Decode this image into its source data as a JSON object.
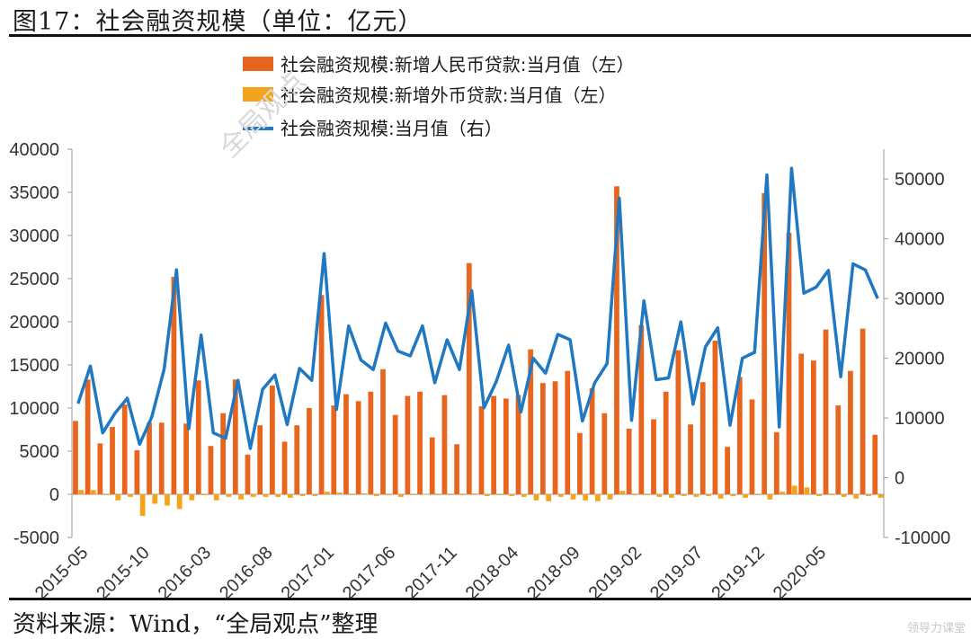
{
  "title": "图17：社会融资规模（单位：亿元）",
  "source": "资料来源：Wind，“全局观点”整理",
  "watermark": "全局观点",
  "corner_watermark": "领导力课堂",
  "colors": {
    "rmb": "#e8651e",
    "fx": "#f5a31a",
    "line": "#1f78c1"
  },
  "chart_data": {
    "type": "bar+line",
    "legend": [
      {
        "label": "社会融资规模:新增人民币贷款:当月值（左）",
        "kind": "bar",
        "color": "#e8651e"
      },
      {
        "label": "社会融资规模:新增外币贷款:当月值（左）",
        "kind": "bar",
        "color": "#f5a31a"
      },
      {
        "label": "社会融资规模:当月值（右）",
        "kind": "line",
        "color": "#1f78c1"
      }
    ],
    "y_left": {
      "min": -5000,
      "max": 40000,
      "ticks": [
        "-5000",
        "0",
        "5000",
        "10000",
        "15000",
        "20000",
        "25000",
        "30000",
        "35000",
        "40000"
      ]
    },
    "y_right": {
      "min": -10000,
      "max": 55000,
      "ticks": [
        "-10000",
        "0",
        "10000",
        "20000",
        "30000",
        "40000",
        "50000"
      ]
    },
    "x_tick_labels": [
      "2015-05",
      "2015-10",
      "2016-03",
      "2016-08",
      "2017-01",
      "2017-06",
      "2017-11",
      "2018-04",
      "2018-09",
      "2019-02",
      "2019-07",
      "2019-12",
      "2020-05"
    ],
    "categories": [
      "2015-05",
      "2015-06",
      "2015-07",
      "2015-08",
      "2015-09",
      "2015-10",
      "2015-11",
      "2015-12",
      "2016-01",
      "2016-02",
      "2016-03",
      "2016-04",
      "2016-05",
      "2016-06",
      "2016-07",
      "2016-08",
      "2016-09",
      "2016-10",
      "2016-11",
      "2016-12",
      "2017-01",
      "2017-02",
      "2017-03",
      "2017-04",
      "2017-05",
      "2017-06",
      "2017-07",
      "2017-08",
      "2017-09",
      "2017-10",
      "2017-11",
      "2017-12",
      "2018-01",
      "2018-02",
      "2018-03",
      "2018-04",
      "2018-05",
      "2018-06",
      "2018-07",
      "2018-08",
      "2018-09",
      "2018-10",
      "2018-11",
      "2018-12",
      "2019-01",
      "2019-02",
      "2019-03",
      "2019-04",
      "2019-05",
      "2019-06",
      "2019-07",
      "2019-08",
      "2019-09",
      "2019-10",
      "2019-11",
      "2019-12",
      "2020-01",
      "2020-02",
      "2020-03",
      "2020-04",
      "2020-05",
      "2020-06",
      "2020-07",
      "2020-08",
      "2020-09",
      "2020-10"
    ],
    "series": [
      {
        "name": "社会融资规模:新增人民币贷款:当月值（左）",
        "axis": "left",
        "values": [
          8500,
          13300,
          5900,
          7800,
          10400,
          5100,
          8300,
          8300,
          25200,
          8200,
          13200,
          5600,
          9400,
          13300,
          4600,
          8000,
          12600,
          6100,
          8000,
          10000,
          23100,
          10300,
          11600,
          10800,
          11900,
          14500,
          9200,
          11400,
          11900,
          6600,
          11500,
          5800,
          26800,
          10200,
          11400,
          11100,
          11500,
          16800,
          12900,
          13100,
          14300,
          7100,
          12300,
          9400,
          35700,
          7600,
          19600,
          8700,
          11900,
          16700,
          8100,
          13000,
          17800,
          5500,
          13600,
          11000,
          34900,
          7200,
          30300,
          16300,
          15500,
          19100,
          10300,
          14300,
          19200,
          6900
        ]
      },
      {
        "name": "社会融资规模:新增外币贷款:当月值（左）",
        "axis": "left",
        "values": [
          500,
          500,
          -100,
          -700,
          -300,
          -2500,
          -1100,
          -1300,
          -1700,
          -700,
          -100,
          -700,
          -300,
          -600,
          -300,
          -300,
          -300,
          -400,
          -200,
          -200,
          300,
          200,
          -100,
          100,
          -200,
          -100,
          -300,
          -100,
          0,
          -100,
          -100,
          -100,
          100,
          -200,
          -100,
          -200,
          -300,
          -700,
          -800,
          -300,
          -600,
          -700,
          -800,
          -600,
          400,
          -100,
          -100,
          -300,
          -400,
          -200,
          -300,
          -200,
          -500,
          -200,
          -400,
          -100,
          -600,
          300,
          1000,
          800,
          -200,
          -100,
          -300,
          -500,
          -200,
          -400
        ]
      },
      {
        "name": "社会融资规模:当月值（右）",
        "axis": "right",
        "values": [
          12400,
          18700,
          7500,
          10800,
          13300,
          5600,
          10200,
          18200,
          34800,
          8200,
          23900,
          7500,
          6600,
          16300,
          4900,
          14800,
          17200,
          8900,
          18300,
          16300,
          37500,
          11400,
          25400,
          19700,
          18100,
          25900,
          21200,
          20400,
          25400,
          15900,
          23100,
          18100,
          31300,
          11700,
          16100,
          22200,
          11000,
          20000,
          17500,
          24000,
          23100,
          9500,
          15900,
          19100,
          46800,
          9600,
          29600,
          16400,
          16700,
          26100,
          12300,
          21900,
          25100,
          8800,
          20000,
          21000,
          50700,
          8500,
          51800,
          30900,
          31900,
          34700,
          16900,
          35800,
          34800,
          30000
        ]
      }
    ]
  }
}
